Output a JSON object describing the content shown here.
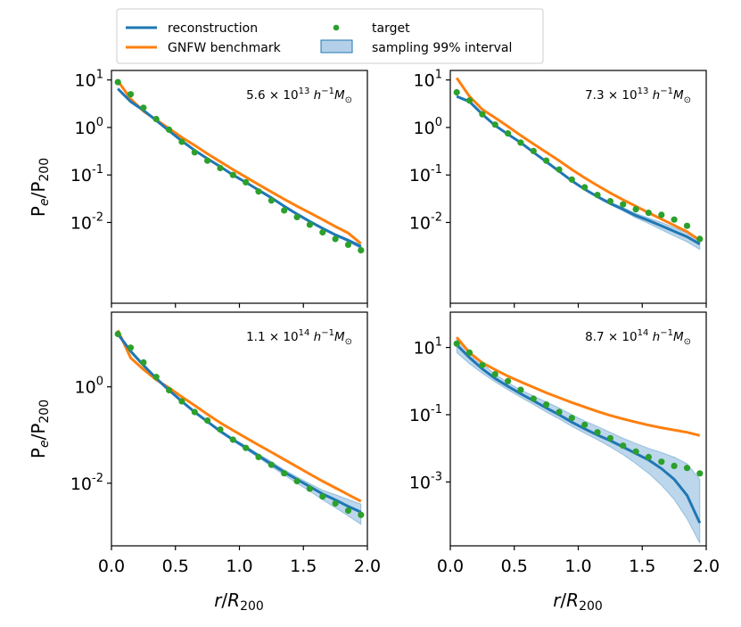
{
  "colors": {
    "reconstruction": "#1f77b4",
    "gnfw": "#ff7f0e",
    "target": "#2ca02c",
    "band": "#a6c8e4"
  },
  "legend": {
    "reconstruction": "reconstruction",
    "gnfw": "GNFW benchmark",
    "target": "target",
    "band": "sampling 99% interval"
  },
  "axes": {
    "ylabel": "Pe/P200",
    "xlabel": "r/R200",
    "xticks": [
      "0.0",
      "0.5",
      "1.0",
      "1.5",
      "2.0"
    ]
  },
  "chart_data": [
    {
      "type": "line",
      "annotation": "5.6 × 10^13 h^-1 M_⊙",
      "xlim": [
        0,
        2
      ],
      "ylim_log10": [
        -3.7,
        1.2
      ],
      "yticks": [
        {
          "exp": 1,
          "label": "10^1"
        },
        {
          "exp": 0,
          "label": "10^0"
        },
        {
          "exp": -1,
          "label": "10^-1"
        },
        {
          "exp": -2,
          "label": "10^-2"
        }
      ],
      "x": [
        0.05,
        0.15,
        0.25,
        0.35,
        0.45,
        0.55,
        0.65,
        0.75,
        0.85,
        0.95,
        1.05,
        1.15,
        1.25,
        1.35,
        1.45,
        1.55,
        1.65,
        1.75,
        1.85,
        1.95
      ],
      "reconstruction": [
        6.5,
        3.5,
        2.3,
        1.4,
        0.85,
        0.52,
        0.33,
        0.22,
        0.15,
        0.1,
        0.07,
        0.048,
        0.033,
        0.022,
        0.015,
        0.0105,
        0.0075,
        0.0055,
        0.0042,
        0.0031
      ],
      "gnfw": [
        9.5,
        4.0,
        2.2,
        1.45,
        0.95,
        0.62,
        0.42,
        0.28,
        0.19,
        0.13,
        0.09,
        0.063,
        0.044,
        0.031,
        0.022,
        0.016,
        0.0115,
        0.0082,
        0.006,
        0.0036
      ],
      "band_lower": [
        6.2,
        3.3,
        2.2,
        1.35,
        0.82,
        0.5,
        0.32,
        0.21,
        0.145,
        0.097,
        0.068,
        0.046,
        0.031,
        0.021,
        0.0143,
        0.01,
        0.0071,
        0.0052,
        0.0039,
        0.0028
      ],
      "band_upper": [
        6.8,
        3.7,
        2.4,
        1.45,
        0.88,
        0.54,
        0.34,
        0.23,
        0.155,
        0.105,
        0.073,
        0.05,
        0.035,
        0.023,
        0.016,
        0.011,
        0.0079,
        0.0058,
        0.0045,
        0.0034
      ],
      "target": [
        9,
        5,
        2.6,
        1.5,
        0.9,
        0.5,
        0.3,
        0.2,
        0.14,
        0.1,
        0.07,
        0.045,
        0.029,
        0.018,
        0.013,
        0.009,
        0.0062,
        0.0045,
        0.0034,
        0.0026
      ]
    },
    {
      "type": "line",
      "annotation": "7.3 × 10^13 h^-1 M_⊙",
      "xlim": [
        0,
        2
      ],
      "ylim_log10": [
        -3.7,
        1.2
      ],
      "yticks": [
        {
          "exp": 1,
          "label": "10^1"
        },
        {
          "exp": 0,
          "label": "10^0"
        },
        {
          "exp": -1,
          "label": "10^-1"
        },
        {
          "exp": -2,
          "label": "10^-2"
        }
      ],
      "x": [
        0.05,
        0.15,
        0.25,
        0.35,
        0.45,
        0.55,
        0.65,
        0.75,
        0.85,
        0.95,
        1.05,
        1.15,
        1.25,
        1.35,
        1.45,
        1.55,
        1.65,
        1.75,
        1.85,
        1.95
      ],
      "reconstruction": [
        4.5,
        3.5,
        1.9,
        1.1,
        0.72,
        0.48,
        0.3,
        0.19,
        0.12,
        0.075,
        0.05,
        0.035,
        0.025,
        0.019,
        0.014,
        0.011,
        0.0085,
        0.0065,
        0.005,
        0.0035
      ],
      "gnfw": [
        11.0,
        4.5,
        2.4,
        1.6,
        1.05,
        0.68,
        0.45,
        0.3,
        0.2,
        0.13,
        0.087,
        0.06,
        0.042,
        0.03,
        0.022,
        0.016,
        0.0118,
        0.0087,
        0.0064,
        0.0042
      ],
      "band_lower": [
        4.3,
        3.3,
        1.8,
        1.05,
        0.69,
        0.46,
        0.29,
        0.18,
        0.115,
        0.072,
        0.048,
        0.033,
        0.024,
        0.0175,
        0.0125,
        0.0095,
        0.007,
        0.0052,
        0.0039,
        0.0027
      ],
      "band_upper": [
        4.7,
        3.7,
        2.0,
        1.15,
        0.75,
        0.5,
        0.31,
        0.2,
        0.125,
        0.078,
        0.052,
        0.037,
        0.027,
        0.0205,
        0.0155,
        0.0125,
        0.01,
        0.0078,
        0.0061,
        0.0044
      ],
      "target": [
        5.5,
        3.7,
        1.9,
        1.15,
        0.75,
        0.48,
        0.32,
        0.2,
        0.13,
        0.08,
        0.055,
        0.038,
        0.028,
        0.024,
        0.019,
        0.016,
        0.0145,
        0.0115,
        0.0085,
        0.0045
      ]
    },
    {
      "type": "line",
      "annotation": "1.1 × 10^14 h^-1 M_⊙",
      "xlim": [
        0,
        2
      ],
      "ylim_log10": [
        -3.3,
        1.55
      ],
      "yticks": [
        {
          "exp": 0,
          "label": "10^0"
        },
        {
          "exp": -2,
          "label": "10^-2"
        }
      ],
      "x": [
        0.05,
        0.15,
        0.25,
        0.35,
        0.45,
        0.55,
        0.65,
        0.75,
        0.85,
        0.95,
        1.05,
        1.15,
        1.25,
        1.35,
        1.45,
        1.55,
        1.65,
        1.75,
        1.85,
        1.95
      ],
      "reconstruction": [
        12.5,
        5.5,
        2.8,
        1.5,
        0.85,
        0.5,
        0.3,
        0.19,
        0.12,
        0.08,
        0.055,
        0.037,
        0.025,
        0.017,
        0.012,
        0.0085,
        0.006,
        0.0045,
        0.0033,
        0.0025
      ],
      "gnfw": [
        15.0,
        4.0,
        2.3,
        1.4,
        0.95,
        0.62,
        0.41,
        0.27,
        0.18,
        0.125,
        0.088,
        0.062,
        0.044,
        0.031,
        0.022,
        0.0155,
        0.011,
        0.008,
        0.0058,
        0.0042
      ],
      "band_lower": [
        11.5,
        5.1,
        2.6,
        1.4,
        0.8,
        0.47,
        0.28,
        0.18,
        0.113,
        0.075,
        0.05,
        0.034,
        0.022,
        0.0148,
        0.01,
        0.0068,
        0.0045,
        0.0031,
        0.0021,
        0.0014
      ],
      "band_upper": [
        13.5,
        5.9,
        3.0,
        1.6,
        0.9,
        0.53,
        0.32,
        0.2,
        0.127,
        0.085,
        0.059,
        0.04,
        0.028,
        0.019,
        0.0135,
        0.0098,
        0.0072,
        0.0058,
        0.0046,
        0.0037
      ],
      "target": [
        12.5,
        6.5,
        3.2,
        1.6,
        0.85,
        0.5,
        0.3,
        0.2,
        0.13,
        0.08,
        0.054,
        0.035,
        0.024,
        0.016,
        0.011,
        0.0077,
        0.0053,
        0.0038,
        0.0027,
        0.0022
      ]
    },
    {
      "type": "line",
      "annotation": "8.7 × 10^14 h^-1 M_⊙",
      "xlim": [
        0,
        2
      ],
      "ylim_log10": [
        -4.9,
        2.05
      ],
      "yticks": [
        {
          "exp": 1,
          "label": "10^1"
        },
        {
          "exp": -1,
          "label": "10^-1"
        },
        {
          "exp": -3,
          "label": "10^-3"
        }
      ],
      "x": [
        0.05,
        0.15,
        0.25,
        0.35,
        0.45,
        0.55,
        0.65,
        0.75,
        0.85,
        0.95,
        1.05,
        1.15,
        1.25,
        1.35,
        1.45,
        1.55,
        1.65,
        1.75,
        1.85,
        1.95
      ],
      "reconstruction": [
        12.0,
        5.0,
        2.3,
        1.2,
        0.7,
        0.42,
        0.26,
        0.16,
        0.1,
        0.06,
        0.038,
        0.025,
        0.017,
        0.011,
        0.007,
        0.0045,
        0.0025,
        0.0012,
        0.0004,
        6e-05
      ],
      "gnfw": [
        20.0,
        7.0,
        3.5,
        2.2,
        1.4,
        0.95,
        0.65,
        0.45,
        0.32,
        0.23,
        0.17,
        0.125,
        0.095,
        0.075,
        0.06,
        0.049,
        0.041,
        0.035,
        0.03,
        0.024
      ],
      "band_lower": [
        7.0,
        3.3,
        1.7,
        0.95,
        0.55,
        0.33,
        0.2,
        0.12,
        0.075,
        0.045,
        0.028,
        0.018,
        0.011,
        0.0065,
        0.0035,
        0.0018,
        0.0008,
        0.0003,
        8e-05,
        1.5e-05
      ],
      "band_upper": [
        20.0,
        8.0,
        3.3,
        1.6,
        0.9,
        0.55,
        0.36,
        0.24,
        0.16,
        0.1,
        0.065,
        0.045,
        0.03,
        0.02,
        0.014,
        0.01,
        0.0075,
        0.0055,
        0.0035,
        0.0012
      ],
      "target": [
        13.0,
        7.0,
        3.0,
        1.6,
        1.0,
        0.55,
        0.3,
        0.2,
        0.12,
        0.08,
        0.05,
        0.03,
        0.02,
        0.012,
        0.008,
        0.0055,
        0.004,
        0.003,
        0.0026,
        0.0018
      ]
    }
  ]
}
